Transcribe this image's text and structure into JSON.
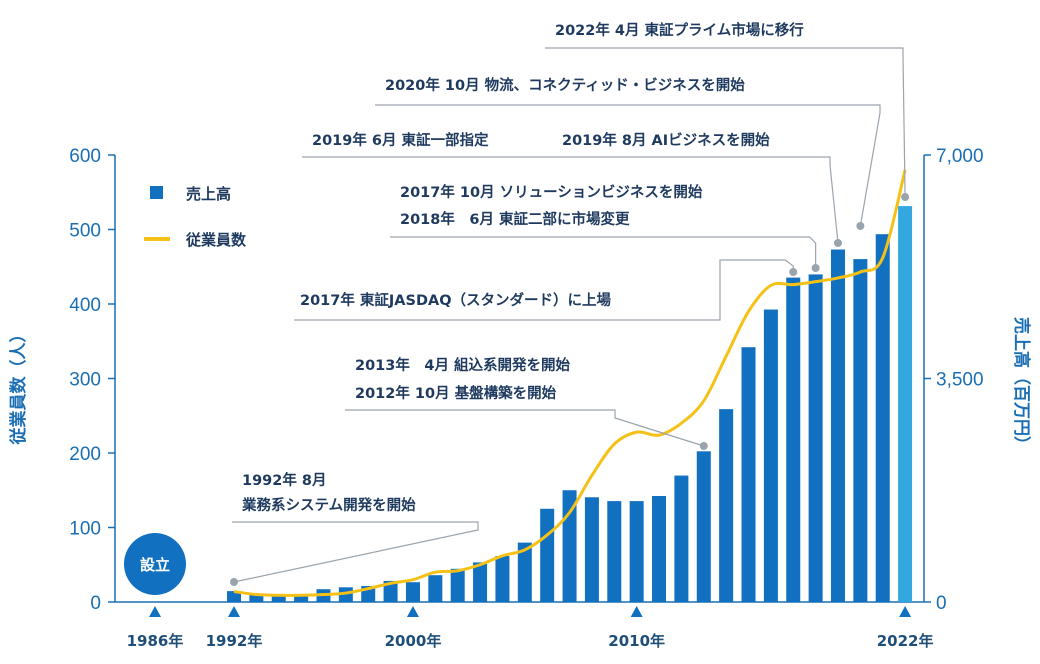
{
  "chart_data": {
    "type": "bar",
    "x": [
      1992,
      1993,
      1994,
      1995,
      1996,
      1997,
      1998,
      1999,
      2000,
      2001,
      2002,
      2003,
      2004,
      2005,
      2006,
      2007,
      2008,
      2009,
      2010,
      2011,
      2012,
      2013,
      2014,
      2015,
      2016,
      2017,
      2018,
      2019,
      2020,
      2021,
      2022
    ],
    "series": [
      {
        "name": "売上高",
        "axis": "right",
        "color": "#1170c0",
        "highlight_last_color": "#33a8e0",
        "values": [
          170,
          120,
          100,
          120,
          200,
          230,
          250,
          330,
          310,
          420,
          520,
          620,
          720,
          930,
          1460,
          1750,
          1640,
          1580,
          1580,
          1660,
          1980,
          2360,
          3020,
          3990,
          4580,
          5080,
          5130,
          5520,
          5370,
          5760,
          6200
        ]
      },
      {
        "name": "従業員数",
        "axis": "left",
        "color": "#f5c116",
        "values": [
          14,
          10,
          9,
          9,
          10,
          12,
          18,
          25,
          30,
          40,
          42,
          50,
          62,
          70,
          90,
          120,
          170,
          212,
          228,
          224,
          240,
          270,
          330,
          390,
          425,
          426,
          430,
          435,
          443,
          462,
          580
        ]
      }
    ],
    "y_left": {
      "label": "従業員数（人）",
      "ticks": [
        "0",
        "100",
        "200",
        "300",
        "400",
        "500",
        "600"
      ],
      "range": [
        0,
        600
      ]
    },
    "y_right": {
      "label": "売上高（百万円）",
      "ticks": [
        "0",
        "3,500",
        "7,000"
      ],
      "range": [
        0,
        7000
      ]
    },
    "x_labels": [
      {
        "year": 1986,
        "text": "1986年"
      },
      {
        "year": 1992,
        "text": "1992年"
      },
      {
        "year": 2000,
        "text": "2000年"
      },
      {
        "year": 2010,
        "text": "2010年"
      },
      {
        "year": 2022,
        "text": "2022年"
      }
    ],
    "founding_badge": {
      "year": 1986,
      "text": "設立"
    },
    "legend": [
      {
        "name": "売上高",
        "shape": "square"
      },
      {
        "name": "従業員数",
        "shape": "line"
      }
    ],
    "annotations": [
      {
        "year": 1992,
        "lines": [
          "1992年 8月",
          "業務系システム開発を開始"
        ]
      },
      {
        "year": 2013,
        "lines": [
          "2013年　4月  組込系開発を開始",
          "2012年 10月  基盤構築を開始"
        ]
      },
      {
        "year": 2017,
        "lines": [
          "2017年  東証JASDAQ（スタンダード）に上場"
        ]
      },
      {
        "year": 2018,
        "lines": [
          "2017年 10月  ソリューションビジネスを開始",
          "2018年　6月  東証二部に市場変更"
        ]
      },
      {
        "year": 2019,
        "lines": [
          "2019年 6月  東証一部指定",
          "2019年 8月  AIビジネスを開始"
        ]
      },
      {
        "year": 2020,
        "lines": [
          "2020年 10月  物流、コネクティッド・ビジネスを開始"
        ]
      },
      {
        "year": 2022,
        "lines": [
          "2022年 4月  東証プライム市場に移行"
        ]
      }
    ]
  }
}
